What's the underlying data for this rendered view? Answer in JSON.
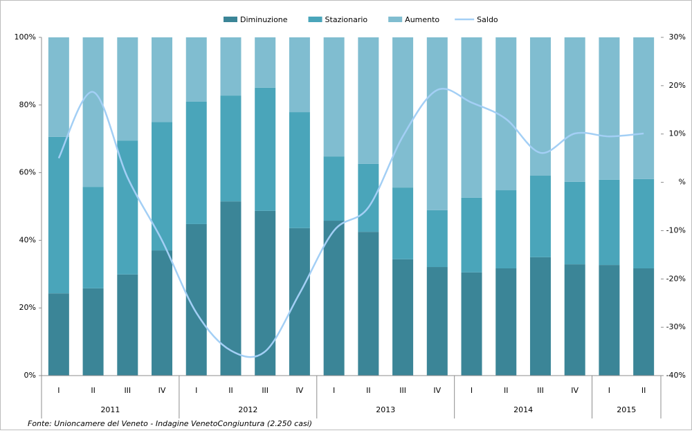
{
  "chart_data": {
    "type": "stacked-bar-line",
    "category_groups": [
      {
        "label": "2011",
        "categories": [
          "I",
          "II",
          "III",
          "IV"
        ]
      },
      {
        "label": "2012",
        "categories": [
          "I",
          "II",
          "III",
          "IV"
        ]
      },
      {
        "label": "2013",
        "categories": [
          "I",
          "II",
          "III",
          "IV"
        ]
      },
      {
        "label": "2014",
        "categories": [
          "I",
          "II",
          "III",
          "IV"
        ]
      },
      {
        "label": "2015",
        "categories": [
          "I",
          "II"
        ]
      }
    ],
    "series": [
      {
        "name": "Diminuzione",
        "color": "#3b8597",
        "values": [
          24.3,
          25.8,
          29.9,
          37,
          44.8,
          51.5,
          48.7,
          43.6,
          45.8,
          42.5,
          34.4,
          32.1,
          30.5,
          31.7,
          35,
          32.9,
          32.7,
          31.7
        ]
      },
      {
        "name": "Stazionario",
        "color": "#4aa5ba",
        "values": [
          46.3,
          30,
          39.6,
          38,
          36.2,
          31.3,
          36.4,
          34.3,
          19,
          20.1,
          21.2,
          16.8,
          22.1,
          23.1,
          24.1,
          24.4,
          25.2,
          26.4
        ]
      },
      {
        "name": "Aumento",
        "color": "#80bdd0",
        "values": [
          29.4,
          44.2,
          30.5,
          25,
          19,
          17.2,
          14.9,
          22.1,
          35.2,
          37.4,
          44.4,
          51.1,
          47.4,
          45.2,
          40.9,
          42.7,
          42.1,
          41.9
        ]
      },
      {
        "name": "Saldo",
        "color": "#a3cff5",
        "axis": "y2",
        "values": [
          5,
          18.7,
          1,
          -12,
          -27,
          -34.8,
          -35,
          -23,
          -10,
          -5.2,
          9.5,
          19.1,
          16.5,
          13.1,
          6.1,
          10.1,
          9.5,
          10.1
        ]
      }
    ],
    "ylim": [
      0,
      100
    ],
    "yticks": [
      {
        "value": 0,
        "label": "0%"
      },
      {
        "value": 20,
        "label": "20%"
      },
      {
        "value": 40,
        "label": "40%"
      },
      {
        "value": 60,
        "label": "60%"
      },
      {
        "value": 80,
        "label": "80%"
      },
      {
        "value": 100,
        "label": "100%"
      }
    ],
    "y2lim": [
      -40,
      30
    ],
    "y2ticks": [
      {
        "value": -40,
        "label": "-40%"
      },
      {
        "value": -30,
        "label": "-30%"
      },
      {
        "value": -20,
        "label": "-20%"
      },
      {
        "value": -10,
        "label": "-10%"
      },
      {
        "value": 0,
        "label": "%"
      },
      {
        "value": 10,
        "label": "10%"
      },
      {
        "value": 20,
        "label": "20%"
      },
      {
        "value": 30,
        "label": "30%"
      }
    ],
    "grid": false,
    "legend": "top",
    "source": "Fonte: Unioncamere del Veneto - Indagine VenetoCongiuntura (2.250 casi)"
  }
}
